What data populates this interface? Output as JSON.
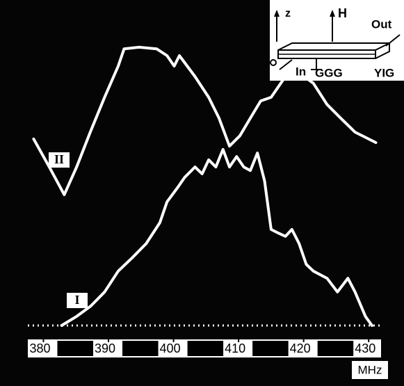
{
  "chart_data": {
    "type": "line",
    "xlabel": "MHz",
    "xlim": [
      377.6,
      431.9
    ],
    "xticks": [
      380,
      390,
      400,
      410,
      420,
      430
    ],
    "ylim": [
      0,
      100
    ],
    "series": [
      {
        "name": "II",
        "color": "#ffffff",
        "x": [
          378.5,
          380.9,
          383.2,
          385.1,
          387.2,
          389.4,
          391.5,
          392.4,
          394.7,
          397.4,
          399.0,
          400.1,
          400.9,
          403.3,
          405.4,
          407.0,
          408.6,
          410.2,
          411.8,
          413.4,
          415.0,
          417.2,
          419.3,
          421.5,
          423.6,
          425.7,
          427.9,
          431.1
        ],
        "values": [
          57.3,
          48.7,
          40.2,
          48.7,
          59.4,
          70.1,
          79.7,
          85.0,
          85.5,
          85.0,
          82.9,
          79.7,
          82.9,
          76.5,
          70.1,
          63.7,
          55.1,
          58.3,
          63.7,
          69.0,
          70.1,
          76.5,
          77.6,
          74.4,
          67.9,
          63.7,
          59.4,
          56.2
        ]
      },
      {
        "name": "I",
        "color": "#ffffff",
        "x": [
          382.8,
          385.1,
          387.3,
          389.4,
          391.5,
          393.7,
          395.8,
          397.9,
          399.0,
          400.6,
          401.7,
          403.3,
          404.4,
          405.4,
          406.5,
          407.6,
          408.6,
          409.7,
          410.8,
          411.8,
          412.9,
          414.0,
          415.0,
          416.1,
          417.2,
          418.2,
          419.3,
          420.4,
          421.5,
          423.6,
          425.2,
          426.8,
          427.9,
          429.5,
          430.5
        ],
        "values": [
          0,
          2.8,
          6.0,
          10.3,
          16.7,
          20.9,
          25.2,
          31.6,
          38.0,
          42.3,
          45.5,
          48.7,
          46.6,
          50.9,
          48.7,
          54.1,
          48.7,
          51.9,
          48.7,
          47.6,
          53.0,
          44.4,
          29.5,
          28.4,
          27.4,
          29.5,
          25.2,
          18.8,
          16.7,
          14.5,
          10.3,
          14.5,
          10.3,
          2.8,
          0
        ]
      }
    ]
  },
  "inset": {
    "labels": [
      "z",
      "H",
      "Out",
      "In",
      "GGG",
      "YIG"
    ]
  }
}
